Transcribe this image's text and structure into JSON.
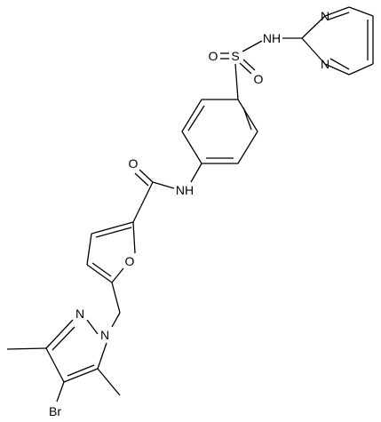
{
  "atoms": [
    {
      "label": "N"
    },
    {
      "label": "N"
    },
    {
      "label": "NH"
    },
    {
      "label": "S"
    },
    {
      "label": "O"
    },
    {
      "label": "O"
    },
    {
      "label": "O"
    },
    {
      "label": "NH"
    },
    {
      "label": "O"
    },
    {
      "label": "N"
    },
    {
      "label": "N"
    },
    {
      "label": "Br"
    }
  ]
}
